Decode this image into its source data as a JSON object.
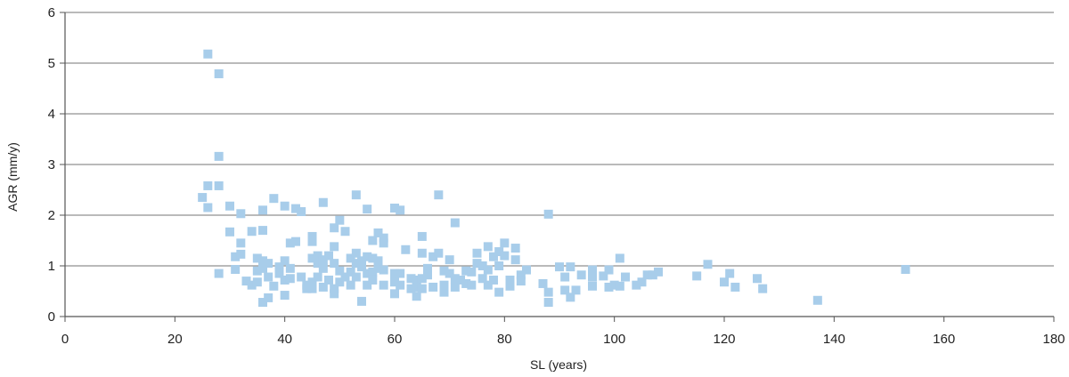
{
  "chart_data": {
    "type": "scatter",
    "xlabel": "SL (years)",
    "ylabel": "AGR (mm/y)",
    "xlim": [
      0,
      180
    ],
    "ylim": [
      0,
      6
    ],
    "x_ticks": [
      0,
      20,
      40,
      60,
      80,
      100,
      120,
      140,
      160,
      180
    ],
    "y_ticks": [
      0,
      1,
      2,
      3,
      4,
      5,
      6
    ],
    "grid": "horizontal",
    "legend": "none",
    "marker": "square",
    "marker_color": "#a8cdea",
    "gridline_color": "#909090",
    "points": [
      [
        25,
        2.35
      ],
      [
        26,
        5.18
      ],
      [
        26,
        2.58
      ],
      [
        26,
        2.15
      ],
      [
        28,
        4.79
      ],
      [
        28,
        3.16
      ],
      [
        28,
        2.58
      ],
      [
        28,
        0.85
      ],
      [
        30,
        2.18
      ],
      [
        30,
        1.67
      ],
      [
        31,
        1.18
      ],
      [
        31,
        0.93
      ],
      [
        32,
        2.03
      ],
      [
        32,
        1.45
      ],
      [
        32,
        1.23
      ],
      [
        33,
        0.7
      ],
      [
        34,
        1.68
      ],
      [
        34,
        0.62
      ],
      [
        35,
        1.15
      ],
      [
        35,
        0.9
      ],
      [
        35,
        0.68
      ],
      [
        36,
        2.1
      ],
      [
        36,
        1.7
      ],
      [
        36,
        1.1
      ],
      [
        36,
        0.95
      ],
      [
        36,
        0.28
      ],
      [
        37,
        1.05
      ],
      [
        37,
        0.78
      ],
      [
        37,
        0.37
      ],
      [
        38,
        2.33
      ],
      [
        38,
        0.6
      ],
      [
        39,
        0.98
      ],
      [
        39,
        0.85
      ],
      [
        40,
        2.18
      ],
      [
        40,
        1.1
      ],
      [
        40,
        0.72
      ],
      [
        40,
        0.42
      ],
      [
        41,
        1.45
      ],
      [
        41,
        0.95
      ],
      [
        41,
        0.75
      ],
      [
        42,
        2.13
      ],
      [
        42,
        1.48
      ],
      [
        43,
        2.07
      ],
      [
        43,
        0.78
      ],
      [
        44,
        0.55
      ],
      [
        44,
        0.62
      ],
      [
        45,
        1.58
      ],
      [
        45,
        1.48
      ],
      [
        45,
        1.15
      ],
      [
        45,
        0.68
      ],
      [
        45,
        0.55
      ],
      [
        46,
        1.2
      ],
      [
        46,
        1.05
      ],
      [
        46,
        0.78
      ],
      [
        47,
        2.25
      ],
      [
        47,
        1.12
      ],
      [
        47,
        0.95
      ],
      [
        47,
        0.58
      ],
      [
        48,
        1.2
      ],
      [
        48,
        0.72
      ],
      [
        49,
        1.75
      ],
      [
        49,
        1.38
      ],
      [
        49,
        1.05
      ],
      [
        49,
        0.55
      ],
      [
        49,
        0.45
      ],
      [
        50,
        1.9
      ],
      [
        50,
        0.9
      ],
      [
        50,
        0.68
      ],
      [
        51,
        1.68
      ],
      [
        51,
        0.78
      ],
      [
        52,
        1.15
      ],
      [
        52,
        0.88
      ],
      [
        52,
        0.62
      ],
      [
        53,
        2.4
      ],
      [
        53,
        1.25
      ],
      [
        53,
        1.05
      ],
      [
        53,
        0.78
      ],
      [
        54,
        1.1
      ],
      [
        54,
        0.98
      ],
      [
        54,
        0.3
      ],
      [
        55,
        2.12
      ],
      [
        55,
        1.18
      ],
      [
        55,
        0.85
      ],
      [
        55,
        0.62
      ],
      [
        56,
        1.5
      ],
      [
        56,
        1.15
      ],
      [
        56,
        0.88
      ],
      [
        56,
        0.72
      ],
      [
        57,
        1.65
      ],
      [
        57,
        1.1
      ],
      [
        57,
        0.95
      ],
      [
        58,
        1.55
      ],
      [
        58,
        1.45
      ],
      [
        58,
        0.92
      ],
      [
        58,
        0.62
      ],
      [
        60,
        2.14
      ],
      [
        60,
        0.85
      ],
      [
        60,
        0.68
      ],
      [
        60,
        0.45
      ],
      [
        61,
        2.1
      ],
      [
        61,
        0.85
      ],
      [
        61,
        0.62
      ],
      [
        62,
        1.32
      ],
      [
        63,
        0.75
      ],
      [
        63,
        0.55
      ],
      [
        64,
        0.72
      ],
      [
        64,
        0.58
      ],
      [
        64,
        0.4
      ],
      [
        65,
        1.58
      ],
      [
        65,
        1.25
      ],
      [
        65,
        0.75
      ],
      [
        65,
        0.55
      ],
      [
        66,
        0.95
      ],
      [
        66,
        0.82
      ],
      [
        67,
        1.18
      ],
      [
        67,
        0.58
      ],
      [
        68,
        2.4
      ],
      [
        68,
        1.25
      ],
      [
        69,
        0.9
      ],
      [
        69,
        0.62
      ],
      [
        69,
        0.48
      ],
      [
        70,
        1.12
      ],
      [
        70,
        0.85
      ],
      [
        71,
        1.85
      ],
      [
        71,
        0.75
      ],
      [
        71,
        0.58
      ],
      [
        72,
        0.72
      ],
      [
        73,
        0.9
      ],
      [
        73,
        0.65
      ],
      [
        74,
        0.88
      ],
      [
        74,
        0.62
      ],
      [
        75,
        1.25
      ],
      [
        75,
        1.05
      ],
      [
        76,
        1.0
      ],
      [
        76,
        0.75
      ],
      [
        77,
        1.38
      ],
      [
        77,
        0.92
      ],
      [
        77,
        0.62
      ],
      [
        78,
        1.18
      ],
      [
        78,
        0.72
      ],
      [
        79,
        1.28
      ],
      [
        79,
        1.0
      ],
      [
        79,
        0.48
      ],
      [
        80,
        1.45
      ],
      [
        80,
        1.2
      ],
      [
        81,
        0.72
      ],
      [
        81,
        0.6
      ],
      [
        82,
        1.35
      ],
      [
        82,
        1.12
      ],
      [
        83,
        0.82
      ],
      [
        83,
        0.7
      ],
      [
        84,
        0.92
      ],
      [
        87,
        0.65
      ],
      [
        88,
        2.02
      ],
      [
        88,
        0.48
      ],
      [
        88,
        0.28
      ],
      [
        90,
        0.98
      ],
      [
        91,
        0.78
      ],
      [
        91,
        0.52
      ],
      [
        92,
        0.98
      ],
      [
        92,
        0.38
      ],
      [
        93,
        0.52
      ],
      [
        94,
        0.82
      ],
      [
        96,
        0.92
      ],
      [
        96,
        0.78
      ],
      [
        96,
        0.6
      ],
      [
        98,
        0.8
      ],
      [
        99,
        0.92
      ],
      [
        99,
        0.58
      ],
      [
        100,
        0.62
      ],
      [
        101,
        1.15
      ],
      [
        101,
        0.6
      ],
      [
        102,
        0.78
      ],
      [
        104,
        0.62
      ],
      [
        105,
        0.68
      ],
      [
        106,
        0.82
      ],
      [
        107,
        0.82
      ],
      [
        108,
        0.88
      ],
      [
        115,
        0.8
      ],
      [
        117,
        1.03
      ],
      [
        120,
        0.68
      ],
      [
        121,
        0.85
      ],
      [
        122,
        0.58
      ],
      [
        126,
        0.75
      ],
      [
        127,
        0.55
      ],
      [
        137,
        0.32
      ],
      [
        153,
        0.93
      ]
    ]
  }
}
